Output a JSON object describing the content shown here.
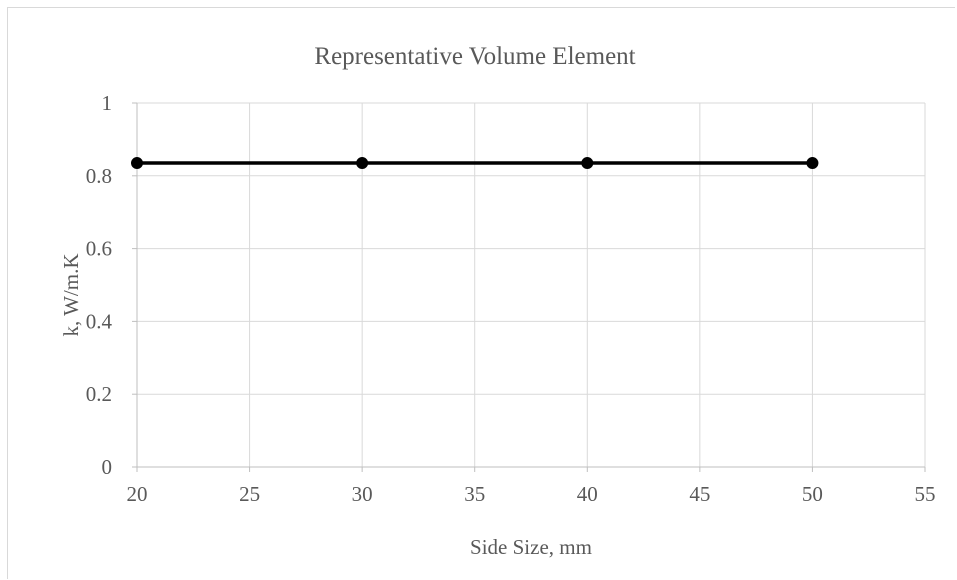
{
  "chart_data": {
    "type": "scatter",
    "title": "Representative Volume Element",
    "xlabel": "Side Size, mm",
    "ylabel": "k, W/m.K",
    "xlim": [
      20,
      55
    ],
    "ylim": [
      0,
      1
    ],
    "xticks": [
      20,
      25,
      30,
      35,
      40,
      45,
      50,
      55
    ],
    "yticks": [
      0,
      0.2,
      0.4,
      0.6,
      0.8,
      1
    ],
    "grid": true,
    "legend": "none",
    "series": [
      {
        "x": [
          20,
          30,
          40,
          50
        ],
        "y": [
          0.835,
          0.835,
          0.835,
          0.835
        ],
        "color": "#000000",
        "marker": "circle",
        "line": true
      }
    ]
  }
}
